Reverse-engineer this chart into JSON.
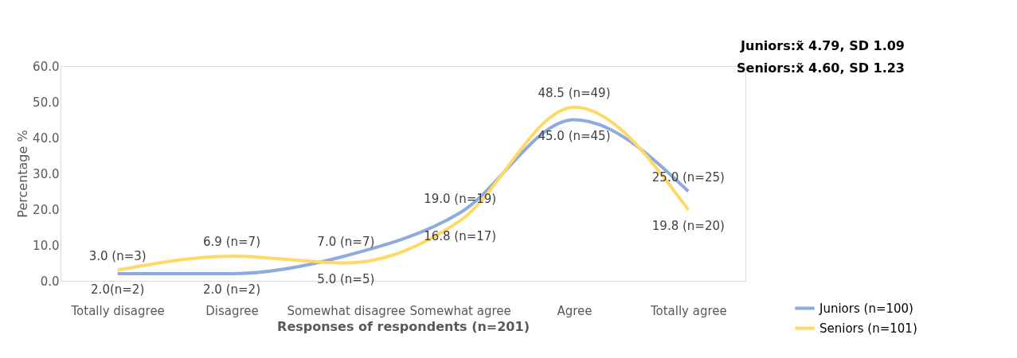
{
  "chart_data": {
    "type": "line",
    "xlabel": "Responses of respondents (n=201)",
    "ylabel": "Percentage %",
    "categories": [
      "Totally disagree",
      "Disagree",
      "Somewhat disagree",
      "Somewhat agree",
      "Agree",
      "Totally agree"
    ],
    "series": [
      {
        "name": "Juniors (n=100)",
        "color": "#8faadc",
        "values": [
          2.0,
          2.0,
          7.0,
          19.0,
          45.0,
          25.0
        ],
        "value_labels": [
          "2.0(n=2)",
          "2.0 (n=2)",
          "7.0 (n=7)",
          "19.0 (n=19)",
          "45.0 (n=45)",
          "25.0 (n=25)"
        ]
      },
      {
        "name": "Seniors (n=101)",
        "color": "#ffd966",
        "values": [
          3.0,
          6.9,
          5.0,
          16.8,
          48.5,
          19.8
        ],
        "value_labels": [
          "3.0 (n=3)",
          "6.9 (n=7)",
          "5.0 (n=5)",
          "16.8 (n=17)",
          "48.5 (n=49)",
          "19.8 (n=20)"
        ]
      }
    ],
    "ylim": [
      0,
      60
    ],
    "yticks": [
      {
        "value": 0,
        "label": "0.0"
      },
      {
        "value": 10,
        "label": "10.0"
      },
      {
        "value": 20,
        "label": "20.0"
      },
      {
        "value": 30,
        "label": "30.0"
      },
      {
        "value": 40,
        "label": "40.0"
      },
      {
        "value": 50,
        "label": "50.0"
      },
      {
        "value": 60,
        "label": "60.0"
      }
    ],
    "annotations": [
      "Juniors:x̃ 4.79, SD 1.09",
      "Seniors:x̃ 4.60, SD 1.23"
    ],
    "legend": "bottom right",
    "grid": false,
    "marker": "none",
    "line_style": "solid"
  }
}
